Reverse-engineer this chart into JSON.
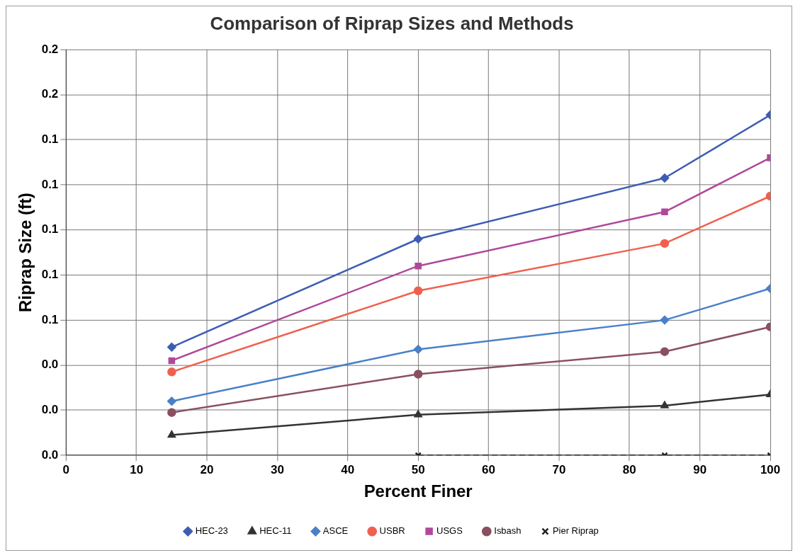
{
  "chart_data": {
    "type": "line",
    "title": "Comparison of Riprap Sizes and Methods",
    "xlabel": "Percent Finer",
    "ylabel": "Riprap Size (ft)",
    "x": [
      15,
      50,
      85,
      100
    ],
    "xlim": [
      0,
      100
    ],
    "xticks": [
      0,
      10,
      20,
      30,
      40,
      50,
      60,
      70,
      80,
      90,
      100
    ],
    "ylim": [
      0,
      0.18
    ],
    "yticks": [
      {
        "value": 0,
        "label": "0.0"
      },
      {
        "value": 0.02,
        "label": "0.0"
      },
      {
        "value": 0.04,
        "label": "0.0"
      },
      {
        "value": 0.06,
        "label": "0.1"
      },
      {
        "value": 0.08,
        "label": "0.1"
      },
      {
        "value": 0.1,
        "label": "0.1"
      },
      {
        "value": 0.12,
        "label": "0.1"
      },
      {
        "value": 0.14,
        "label": "0.1"
      },
      {
        "value": 0.16,
        "label": "0.2"
      },
      {
        "value": 0.18,
        "label": "0.2"
      }
    ],
    "grid": true,
    "legend": "bottom",
    "line_style": "solid",
    "series": [
      {
        "name": "HEC-23",
        "color": "#3d5db3",
        "marker": "diamond",
        "values": [
          0.048,
          0.096,
          0.123,
          0.151
        ]
      },
      {
        "name": "HEC-11",
        "color": "#333333",
        "marker": "triangle",
        "values": [
          0.009,
          0.018,
          0.022,
          0.027
        ]
      },
      {
        "name": "ASCE",
        "color": "#4a80c8",
        "marker": "diamond",
        "values": [
          0.024,
          0.047,
          0.06,
          0.074
        ]
      },
      {
        "name": "USBR",
        "color": "#f0604f",
        "marker": "circle",
        "values": [
          0.037,
          0.073,
          0.094,
          0.115
        ]
      },
      {
        "name": "USGS",
        "color": "#b0489a",
        "marker": "square",
        "values": [
          0.042,
          0.084,
          0.108,
          0.132
        ]
      },
      {
        "name": "Isbash",
        "color": "#8a5060",
        "marker": "circle",
        "values": [
          0.019,
          0.036,
          0.046,
          0.057
        ]
      },
      {
        "name": "Pier Riprap",
        "color": "#222222",
        "marker": "cross",
        "line_style": "dashed",
        "values": [
          null,
          0,
          0,
          0
        ]
      }
    ]
  }
}
